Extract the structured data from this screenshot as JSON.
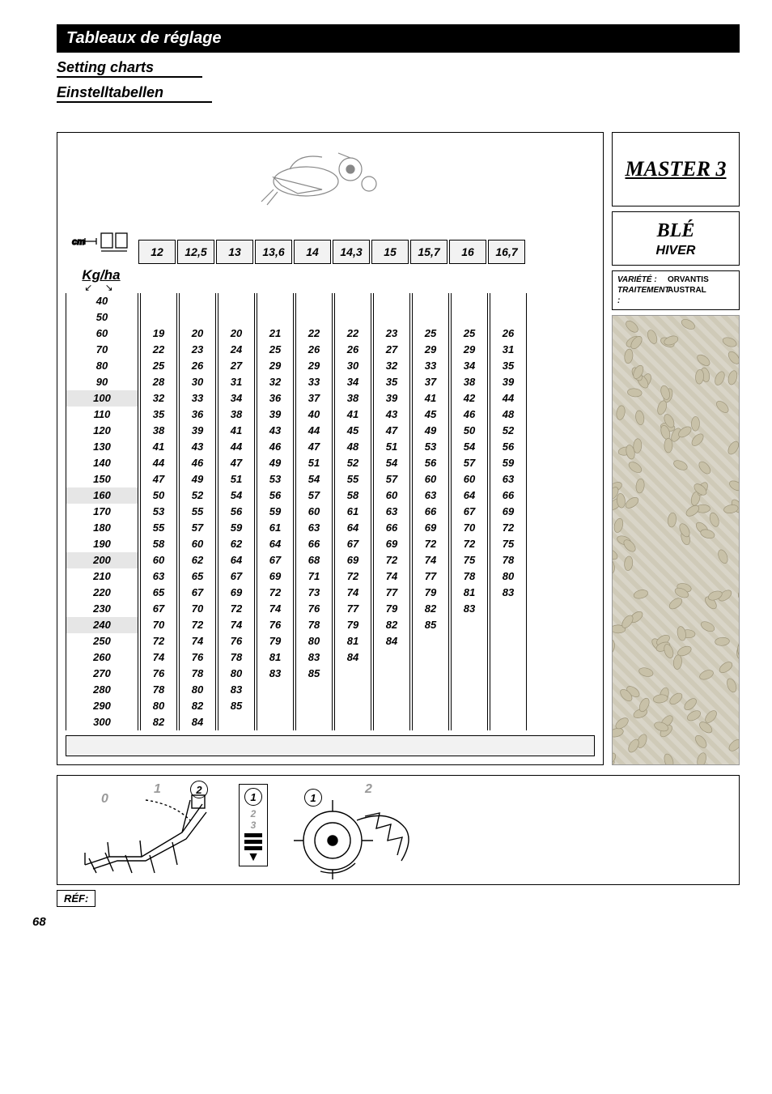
{
  "titles": {
    "bar": "Tableaux de réglage",
    "sub1": "Setting charts",
    "sub2": "Einstelltabellen"
  },
  "right": {
    "master": "MASTER 3",
    "ble": "BLÉ",
    "hiver": "HIVER",
    "var_label": "VARIÉTÉ :",
    "var_val": "ORVANTIS",
    "trt_label": "TRAITEMENT :",
    "trt_val": "AUSTRAL"
  },
  "columns": [
    "12",
    "12,5",
    "13",
    "13,6",
    "14",
    "14,3",
    "15",
    "15,7",
    "16",
    "16,7"
  ],
  "kg_label": "Kg/ha",
  "kg_rows": [
    "40",
    "50",
    "60",
    "70",
    "80",
    "90",
    "100",
    "110",
    "120",
    "130",
    "140",
    "150",
    "160",
    "170",
    "180",
    "190",
    "200",
    "210",
    "220",
    "230",
    "240",
    "250",
    "260",
    "270",
    "280",
    "290",
    "300"
  ],
  "kg_highlight": [
    6,
    12,
    16,
    20
  ],
  "data": [
    [
      "",
      "",
      "",
      "",
      "",
      "",
      "",
      "",
      "",
      ""
    ],
    [
      "",
      "",
      "",
      "",
      "",
      "",
      "",
      "",
      "",
      ""
    ],
    [
      "19",
      "20",
      "20",
      "21",
      "22",
      "22",
      "23",
      "25",
      "25",
      "26"
    ],
    [
      "22",
      "23",
      "24",
      "25",
      "26",
      "26",
      "27",
      "29",
      "29",
      "31"
    ],
    [
      "25",
      "26",
      "27",
      "29",
      "29",
      "30",
      "32",
      "33",
      "34",
      "35"
    ],
    [
      "28",
      "30",
      "31",
      "32",
      "33",
      "34",
      "35",
      "37",
      "38",
      "39"
    ],
    [
      "32",
      "33",
      "34",
      "36",
      "37",
      "38",
      "39",
      "41",
      "42",
      "44"
    ],
    [
      "35",
      "36",
      "38",
      "39",
      "40",
      "41",
      "43",
      "45",
      "46",
      "48"
    ],
    [
      "38",
      "39",
      "41",
      "43",
      "44",
      "45",
      "47",
      "49",
      "50",
      "52"
    ],
    [
      "41",
      "43",
      "44",
      "46",
      "47",
      "48",
      "51",
      "53",
      "54",
      "56"
    ],
    [
      "44",
      "46",
      "47",
      "49",
      "51",
      "52",
      "54",
      "56",
      "57",
      "59"
    ],
    [
      "47",
      "49",
      "51",
      "53",
      "54",
      "55",
      "57",
      "60",
      "60",
      "63"
    ],
    [
      "50",
      "52",
      "54",
      "56",
      "57",
      "58",
      "60",
      "63",
      "64",
      "66"
    ],
    [
      "53",
      "55",
      "56",
      "59",
      "60",
      "61",
      "63",
      "66",
      "67",
      "69"
    ],
    [
      "55",
      "57",
      "59",
      "61",
      "63",
      "64",
      "66",
      "69",
      "70",
      "72"
    ],
    [
      "58",
      "60",
      "62",
      "64",
      "66",
      "67",
      "69",
      "72",
      "72",
      "75"
    ],
    [
      "60",
      "62",
      "64",
      "67",
      "68",
      "69",
      "72",
      "74",
      "75",
      "78"
    ],
    [
      "63",
      "65",
      "67",
      "69",
      "71",
      "72",
      "74",
      "77",
      "78",
      "80"
    ],
    [
      "65",
      "67",
      "69",
      "72",
      "73",
      "74",
      "77",
      "79",
      "81",
      "83"
    ],
    [
      "67",
      "70",
      "72",
      "74",
      "76",
      "77",
      "79",
      "82",
      "83",
      ""
    ],
    [
      "70",
      "72",
      "74",
      "76",
      "78",
      "79",
      "82",
      "85",
      "",
      ""
    ],
    [
      "72",
      "74",
      "76",
      "79",
      "80",
      "81",
      "84",
      "",
      "",
      ""
    ],
    [
      "74",
      "76",
      "78",
      "81",
      "83",
      "84",
      "",
      "",
      "",
      ""
    ],
    [
      "76",
      "78",
      "80",
      "83",
      "85",
      "",
      "",
      "",
      "",
      ""
    ],
    [
      "78",
      "80",
      "83",
      "",
      "",
      "",
      "",
      "",
      "",
      ""
    ],
    [
      "80",
      "82",
      "85",
      "",
      "",
      "",
      "",
      "",
      "",
      ""
    ],
    [
      "82",
      "84",
      "",
      "",
      "",
      "",
      "",
      "",
      "",
      ""
    ]
  ],
  "bottom": {
    "lever_labels": [
      "0",
      "1",
      "2"
    ],
    "ruler_nums": [
      "2",
      "3"
    ],
    "gear_labels": [
      "1",
      "2"
    ],
    "ref": "RÉF:"
  },
  "page_num": "68",
  "colors": {
    "gray_num": "#9a9a9a",
    "head_bg": "#f2f2f2",
    "hl_bg": "#e6e6e6"
  }
}
